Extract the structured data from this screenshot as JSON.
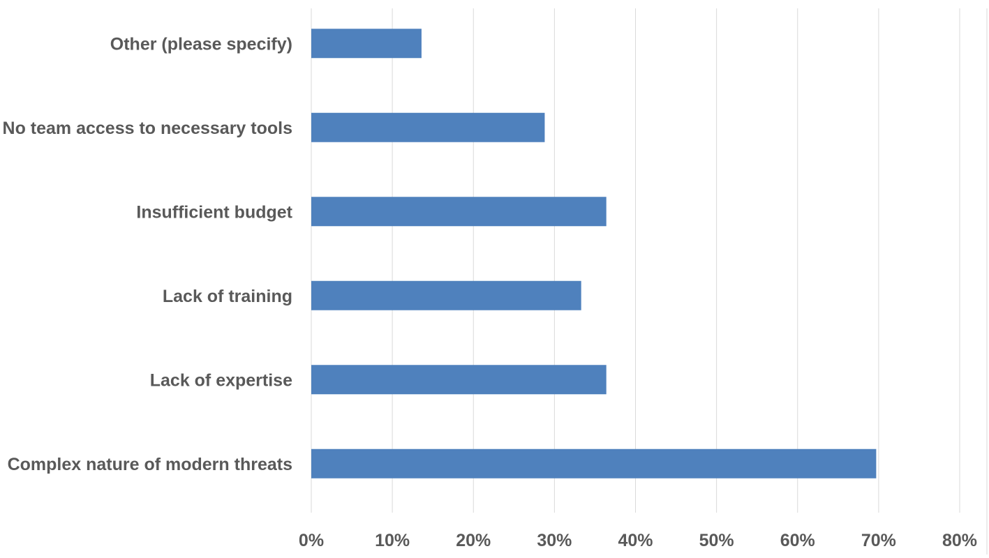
{
  "chart_data": {
    "type": "bar",
    "orientation": "horizontal",
    "title": "",
    "xlabel": "",
    "ylabel": "",
    "categories": [
      "Other (please specify)",
      "No team access to necessary tools",
      "Insufficient budget",
      "Lack of training",
      "Lack of expertise",
      "Complex nature of modern threats"
    ],
    "series": [
      {
        "values": [
          13.6,
          28.8,
          36.4,
          33.3,
          36.4,
          69.7
        ],
        "color": "#4f81bd"
      }
    ],
    "xlim": [
      0,
      80
    ],
    "x_ticks": [
      0,
      10,
      20,
      30,
      40,
      50,
      60,
      70,
      80
    ],
    "x_tick_labels": [
      "0%",
      "10%",
      "20%",
      "30%",
      "40%",
      "50%",
      "60%",
      "70%",
      "80%"
    ],
    "grid": "vertical",
    "legend": "none",
    "gridline_color": "#d9d9d9",
    "text_color": "#595959"
  }
}
